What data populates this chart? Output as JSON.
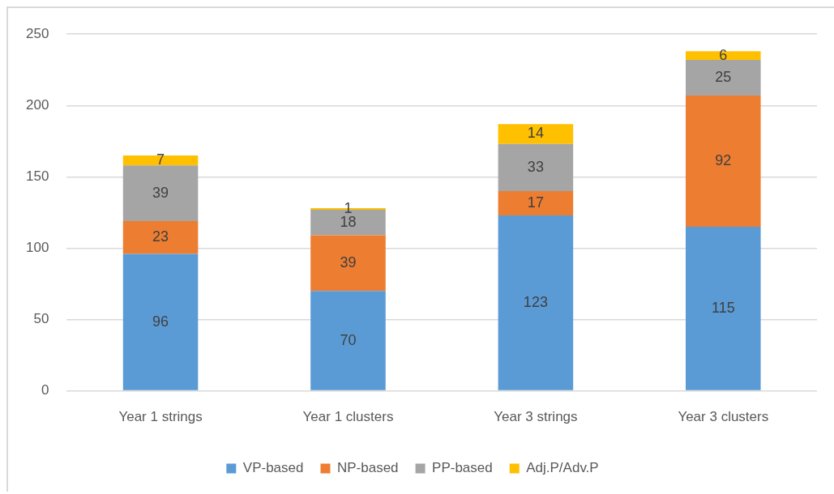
{
  "chart_data": {
    "type": "bar",
    "categories": [
      "Year 1 strings",
      "Year 1 clusters",
      "Year 3 strings",
      "Year 3 clusters"
    ],
    "series": [
      {
        "name": "VP-based",
        "color": "#5b9bd5",
        "values": [
          96,
          70,
          123,
          115
        ]
      },
      {
        "name": "NP-based",
        "color": "#ed7d31",
        "values": [
          23,
          39,
          17,
          92
        ]
      },
      {
        "name": "PP-based",
        "color": "#a5a5a5",
        "values": [
          39,
          18,
          33,
          25
        ]
      },
      {
        "name": "Adj.P/Adv.P",
        "color": "#ffc000",
        "values": [
          7,
          1,
          14,
          6
        ]
      }
    ],
    "stacked": true,
    "ylim": [
      0,
      250
    ],
    "yticks": [
      0,
      50,
      100,
      150,
      200,
      250
    ],
    "grid": "y",
    "legend": "bottom",
    "data_labels": true
  }
}
